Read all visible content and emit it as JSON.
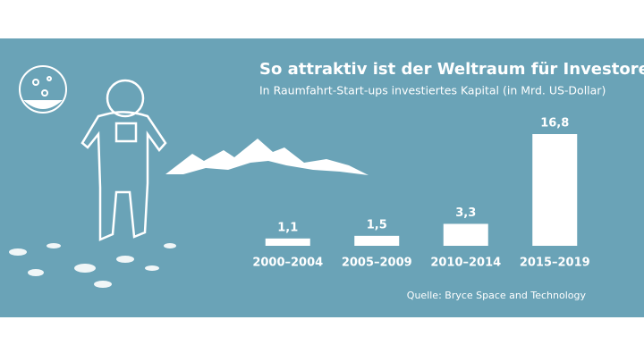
{
  "chart_data": {
    "type": "bar",
    "title": "So attraktiv ist der Weltraum für Investoren",
    "subtitle": "In Raumfahrt-Start-ups investiertes Kapital (in Mrd. US-Dollar)",
    "categories": [
      "2000–2004",
      "2005–2009",
      "2010–2014",
      "2015–2019"
    ],
    "values": [
      1.1,
      1.5,
      3.3,
      16.8
    ],
    "value_labels": [
      "1,1",
      "1,5",
      "3,3",
      "16,8"
    ],
    "color": "#ffffff",
    "source": "Quelle: Bryce Space and Technology"
  }
}
